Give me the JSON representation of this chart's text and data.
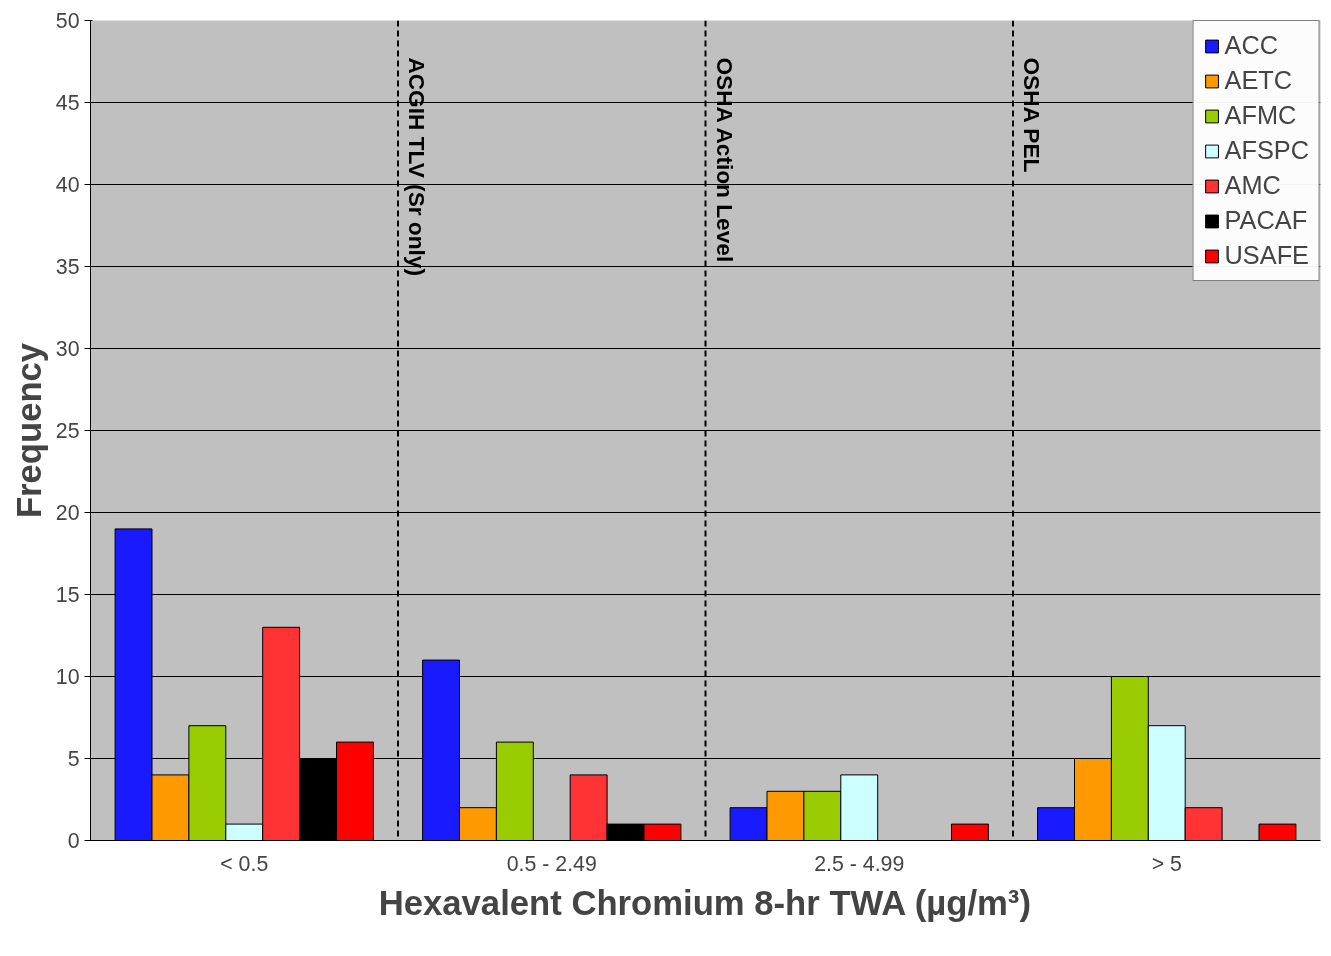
{
  "chart_data": {
    "type": "bar",
    "xlabel": "Hexavalent Chromium 8-hr TWA (µg/m³)",
    "ylabel": "Frequency",
    "categories": [
      "< 0.5",
      "0.5 - 2.49",
      "2.5 - 4.99",
      "> 5"
    ],
    "series": [
      {
        "name": "ACC",
        "color": "#1a1aff",
        "values": [
          19,
          11,
          2,
          2
        ]
      },
      {
        "name": "AETC",
        "color": "#ff9900",
        "values": [
          4,
          2,
          3,
          5
        ]
      },
      {
        "name": "AFMC",
        "color": "#99cc00",
        "values": [
          7,
          6,
          3,
          10
        ]
      },
      {
        "name": "AFSPC",
        "color": "#ccffff",
        "values": [
          1,
          0,
          4,
          7
        ]
      },
      {
        "name": "AMC",
        "color": "#ff3333",
        "values": [
          13,
          4,
          0,
          2
        ]
      },
      {
        "name": "PACAF",
        "color": "#000000",
        "values": [
          5,
          1,
          0,
          0
        ]
      },
      {
        "name": "USAFE",
        "color": "#ff0000",
        "values": [
          6,
          1,
          1,
          1
        ]
      }
    ],
    "ylim": [
      0,
      50
    ],
    "yticks": [
      0,
      5,
      10,
      15,
      20,
      25,
      30,
      35,
      40,
      45,
      50
    ],
    "annotations": [
      "ACGIH TLV (Sr only)",
      "OSHA Action Level",
      "OSHA PEL"
    ],
    "grid": "y",
    "legend": "top right"
  }
}
